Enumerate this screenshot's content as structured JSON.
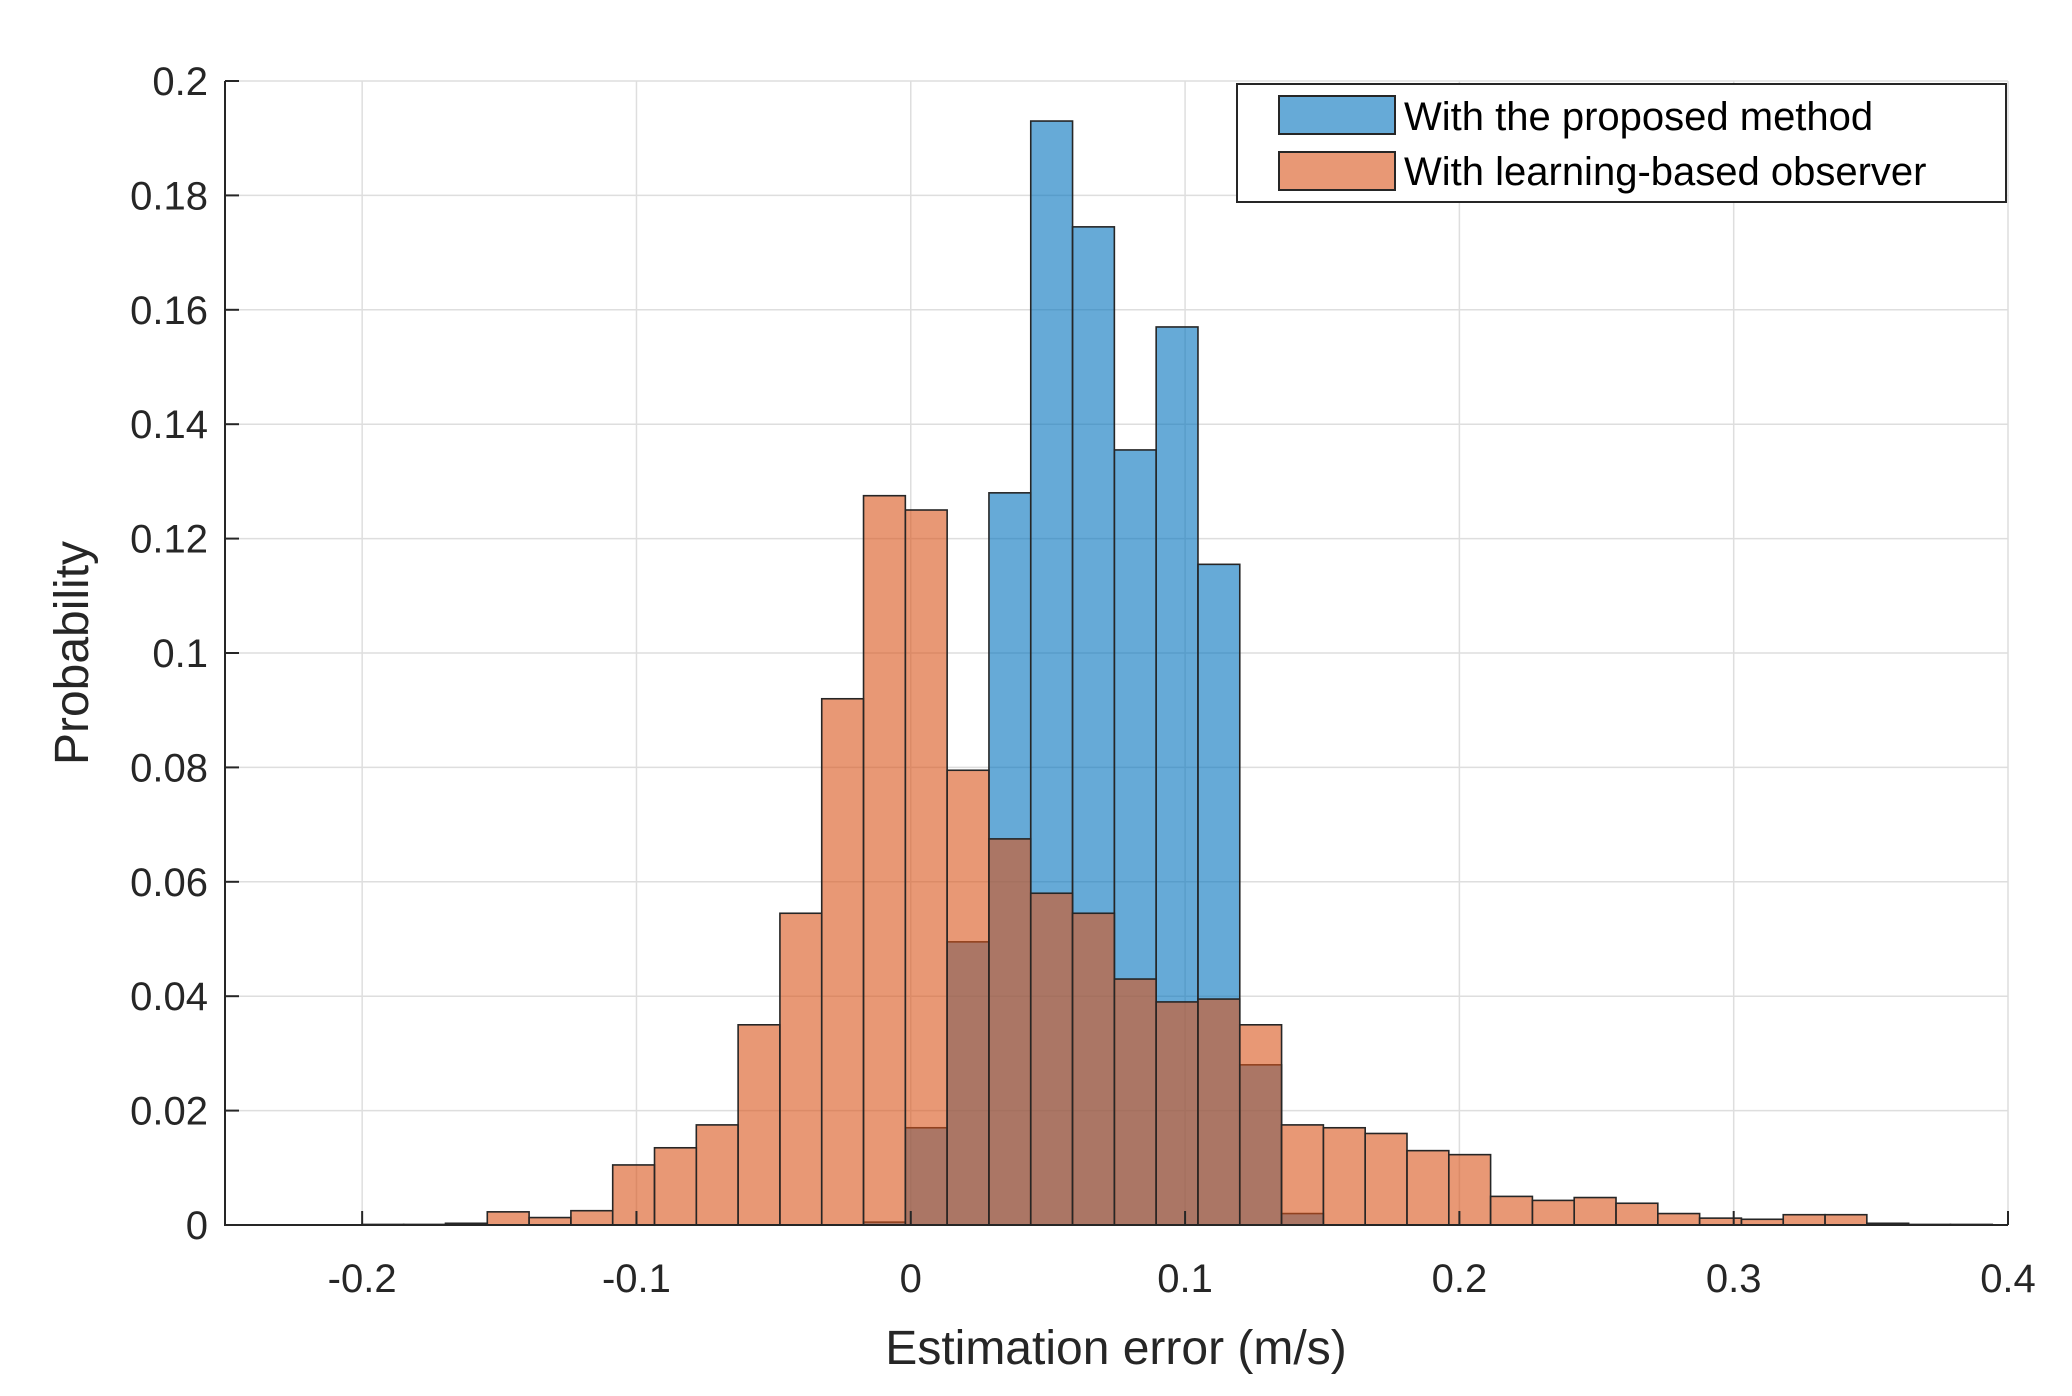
{
  "chart_data": {
    "type": "bar",
    "subtype": "overlaid-histogram",
    "title": "",
    "xlabel": "Estimation error (m/s)",
    "ylabel": "Probability",
    "xlim": [
      -0.25,
      0.4
    ],
    "ylim": [
      0,
      0.2
    ],
    "xticks": [
      -0.2,
      -0.1,
      0,
      0.1,
      0.2,
      0.3,
      0.4
    ],
    "xtick_labels": [
      "-0.2",
      "-0.1",
      "0",
      "0.1",
      "0.2",
      "0.3",
      "0.4"
    ],
    "yticks": [
      0,
      0.02,
      0.04,
      0.06,
      0.08,
      0.1,
      0.12,
      0.14,
      0.16,
      0.18,
      0.2
    ],
    "ytick_labels": [
      "0",
      "0.02",
      "0.04",
      "0.06",
      "0.08",
      "0.1",
      "0.12",
      "0.14",
      "0.16",
      "0.18",
      "0.2"
    ],
    "grid": true,
    "legend_position": "top-right",
    "bin_width": 0.01524,
    "bin_start": -0.2001,
    "series": [
      {
        "name": "With the proposed method",
        "color": "#0072BD",
        "face_alpha": 0.6,
        "values": [
          0,
          0,
          0,
          0,
          0,
          0,
          0,
          0,
          0,
          0,
          0,
          0,
          0.0005,
          0.017,
          0.0495,
          0.128,
          0.193,
          0.1745,
          0.1355,
          0.157,
          0.1155,
          0.028,
          0.002,
          0,
          0,
          0,
          0,
          0,
          0,
          0,
          0,
          0,
          0,
          0,
          0,
          0,
          0,
          0,
          0,
          0,
          0,
          0,
          0,
          0,
          0,
          0,
          0,
          0,
          0,
          0,
          0,
          0,
          0,
          0,
          0,
          0,
          0,
          0
        ]
      },
      {
        "name": "With learning-based observer",
        "color": "#D95319",
        "face_alpha": 0.6,
        "values": [
          0.0001,
          0.0001,
          0.0003,
          0.0023,
          0.0013,
          0.0025,
          0.0105,
          0.0135,
          0.0175,
          0.035,
          0.0545,
          0.092,
          0.1275,
          0.125,
          0.0795,
          0.0675,
          0.058,
          0.0545,
          0.043,
          0.039,
          0.0395,
          0.035,
          0.0175,
          0.017,
          0.016,
          0.013,
          0.0123,
          0.005,
          0.0043,
          0.0048,
          0.0038,
          0.002,
          0.0012,
          0.001,
          0.0018,
          0.0018,
          0.0003,
          0.0001,
          0.0001
        ]
      }
    ]
  }
}
